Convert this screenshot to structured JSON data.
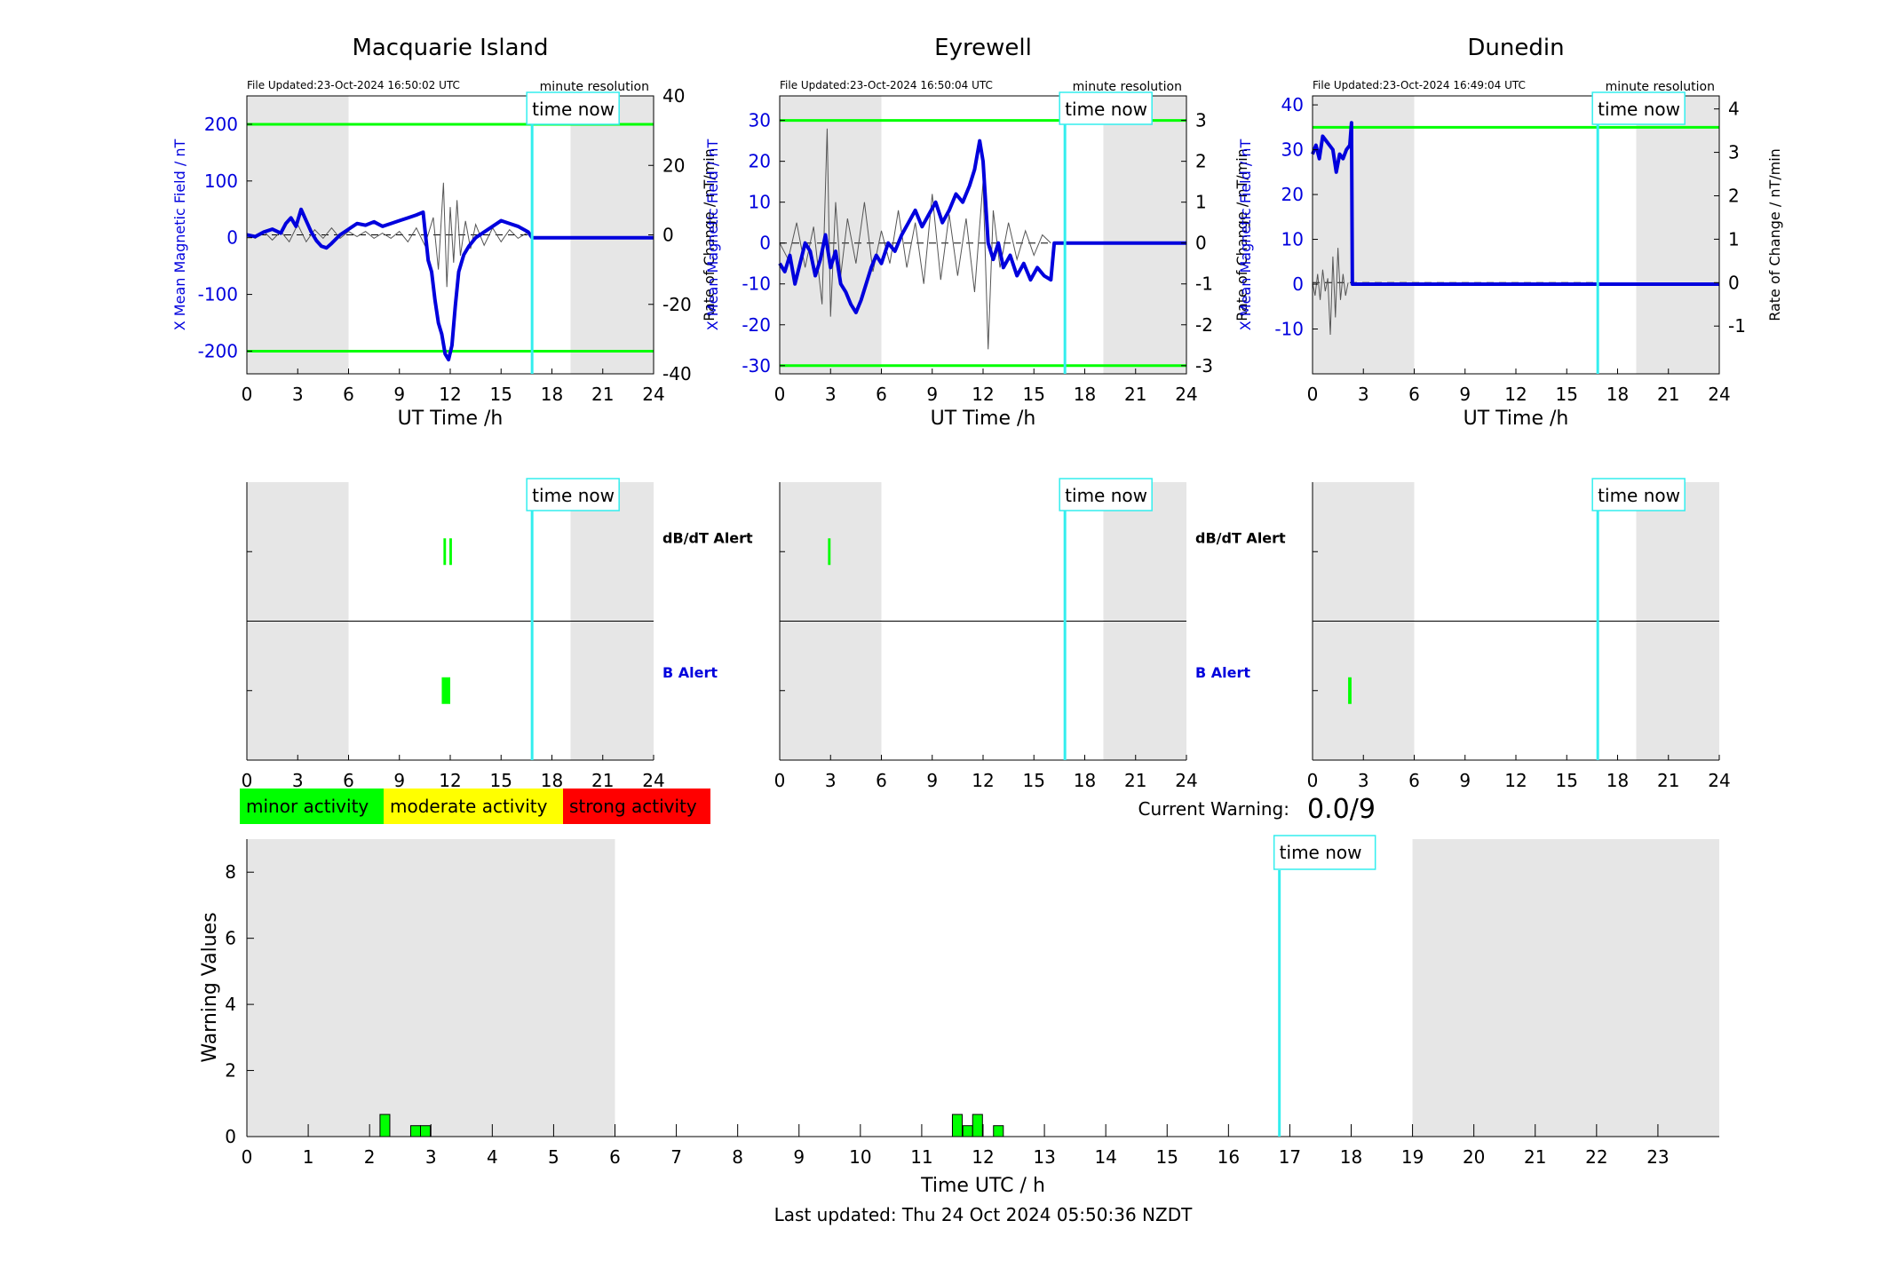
{
  "page": {
    "last_updated": "Last updated: Thu 24 Oct 2024 05:50:36 NZDT",
    "current_warning_label": "Current Warning:",
    "current_warning_value": "0.0/9"
  },
  "labels": {
    "time_now": "time now",
    "minute_resolution": "minute resolution",
    "dbdt_alert": "dB/dT Alert",
    "b_alert": "B Alert"
  },
  "legend": [
    {
      "label": "minor activity",
      "color": "#00ff00"
    },
    {
      "label": "moderate activity",
      "color": "#ffff00"
    },
    {
      "label": "strong activity",
      "color": "#ff0000"
    }
  ],
  "colors": {
    "field_line": "#0000dd",
    "rate_line": "#555555",
    "threshold": "#00ff00",
    "time_now": "#33eeee",
    "night_shade": "#e6e6e6",
    "alert_bar": "#00ff00"
  },
  "chart_data": [
    {
      "type": "line",
      "id": "macquarie",
      "title": "Macquarie Island",
      "file_updated": "File Updated:23-Oct-2024 16:50:02 UTC",
      "xlabel": "UT Time /h",
      "ylabel_left": "X Mean Magnetic Field / nT",
      "ylabel_right": "Rate of Change / nT/min",
      "xlim": [
        0,
        24
      ],
      "xticks": [
        0,
        3,
        6,
        9,
        12,
        15,
        18,
        21,
        24
      ],
      "ylim_left": [
        -240,
        250
      ],
      "yticks_left": [
        -200,
        -100,
        0,
        100,
        200
      ],
      "ylim_right": [
        -40,
        40
      ],
      "yticks_right": [
        -40,
        -20,
        0,
        20,
        40
      ],
      "thresholds": [
        200,
        -200
      ],
      "shaded": [
        [
          0,
          6
        ],
        [
          19.1,
          24
        ]
      ],
      "time_now": 16.83,
      "field": {
        "x": [
          0,
          0.5,
          1,
          1.5,
          2,
          2.3,
          2.6,
          2.9,
          3.2,
          3.5,
          3.8,
          4.1,
          4.4,
          4.7,
          5,
          5.5,
          6,
          6.5,
          7,
          7.5,
          8,
          8.5,
          9,
          9.5,
          10,
          10.4,
          10.7,
          10.9,
          11.1,
          11.3,
          11.5,
          11.7,
          11.9,
          12.1,
          12.3,
          12.5,
          12.8,
          13.1,
          13.5,
          14,
          14.5,
          15,
          15.5,
          16,
          16.6,
          16.83,
          24
        ],
        "y": [
          5,
          2,
          10,
          15,
          8,
          25,
          35,
          20,
          50,
          30,
          10,
          -5,
          -15,
          -18,
          -10,
          5,
          15,
          25,
          22,
          28,
          20,
          25,
          30,
          35,
          40,
          45,
          -40,
          -60,
          -110,
          -150,
          -170,
          -205,
          -215,
          -190,
          -120,
          -60,
          -30,
          -15,
          0,
          10,
          20,
          30,
          25,
          20,
          10,
          0,
          0
        ]
      },
      "rate": {
        "x": [
          0,
          0.5,
          1,
          1.5,
          2,
          2.5,
          3,
          3.5,
          4,
          4.5,
          5,
          5.5,
          6,
          6.5,
          7,
          7.5,
          8,
          8.5,
          9,
          9.5,
          10,
          10.5,
          11,
          11.3,
          11.6,
          11.8,
          12,
          12.2,
          12.4,
          12.6,
          12.9,
          13.2,
          13.5,
          14,
          14.5,
          15,
          15.5,
          16,
          16.5,
          16.83
        ],
        "y": [
          0,
          -1,
          1,
          -1.5,
          1,
          -2,
          3,
          -2,
          1.5,
          -1,
          2,
          -1,
          1,
          -0.5,
          1,
          -1,
          0.5,
          -1,
          1,
          -2,
          2,
          -3,
          5,
          -10,
          15,
          -15,
          8,
          -8,
          10,
          -6,
          4,
          -4,
          3,
          -3,
          2,
          -2,
          1.5,
          -1,
          0.5,
          0
        ]
      }
    },
    {
      "type": "line",
      "id": "eyrewell",
      "title": "Eyrewell",
      "file_updated": "File Updated:23-Oct-2024 16:50:04 UTC",
      "xlabel": "UT Time /h",
      "ylabel_left": "X Mean Magnetic Field / nT",
      "ylabel_right": "Rate of Change / nT/min",
      "xlim": [
        0,
        24
      ],
      "xticks": [
        0,
        3,
        6,
        9,
        12,
        15,
        18,
        21,
        24
      ],
      "ylim_left": [
        -32,
        36
      ],
      "yticks_left": [
        -30,
        -20,
        -10,
        0,
        10,
        20,
        30
      ],
      "ylim_right": [
        -3.2,
        3.6
      ],
      "yticks_right": [
        -3,
        -2,
        -1,
        0,
        1,
        2,
        3
      ],
      "thresholds": [
        30,
        -30
      ],
      "shaded": [
        [
          0,
          6
        ],
        [
          19.1,
          24
        ]
      ],
      "time_now": 16.83,
      "field": {
        "x": [
          0,
          0.3,
          0.6,
          0.9,
          1.2,
          1.5,
          1.8,
          2.1,
          2.4,
          2.7,
          3,
          3.3,
          3.6,
          3.9,
          4.2,
          4.5,
          4.8,
          5.1,
          5.4,
          5.7,
          6,
          6.4,
          6.8,
          7.2,
          7.6,
          8,
          8.4,
          8.8,
          9.2,
          9.6,
          10,
          10.4,
          10.8,
          11.2,
          11.5,
          11.8,
          12,
          12.3,
          12.6,
          12.9,
          13.2,
          13.6,
          14,
          14.4,
          14.8,
          15.2,
          15.6,
          16,
          16.2,
          16.83,
          24
        ],
        "y": [
          -5,
          -7,
          -3,
          -10,
          -5,
          0,
          -2,
          -8,
          -4,
          2,
          -6,
          -2,
          -10,
          -12,
          -15,
          -17,
          -14,
          -10,
          -6,
          -3,
          -5,
          0,
          -2,
          2,
          5,
          8,
          4,
          7,
          10,
          5,
          8,
          12,
          10,
          14,
          18,
          25,
          20,
          0,
          -4,
          0,
          -6,
          -3,
          -8,
          -5,
          -9,
          -6,
          -8,
          -9,
          0,
          0,
          0
        ]
      },
      "rate": {
        "x": [
          0,
          0.5,
          1,
          1.5,
          2,
          2.5,
          2.8,
          3,
          3.3,
          3.6,
          4,
          4.5,
          5,
          5.5,
          6,
          6.5,
          7,
          7.5,
          8,
          8.5,
          9,
          9.5,
          10,
          10.5,
          11,
          11.5,
          12,
          12.3,
          12.6,
          13,
          13.5,
          14,
          14.5,
          15,
          15.5,
          16
        ],
        "y": [
          0,
          -0.4,
          0.5,
          -0.6,
          0.4,
          -1.5,
          2.8,
          -1.8,
          1,
          -0.8,
          0.6,
          -0.5,
          1,
          -0.7,
          0.3,
          -0.5,
          0.8,
          -0.6,
          0.5,
          -1,
          1.2,
          -0.9,
          0.7,
          -0.8,
          0.6,
          -1.2,
          1.5,
          -2.6,
          0.8,
          -0.6,
          0.5,
          -0.4,
          0.3,
          -0.3,
          0.2,
          0
        ]
      }
    },
    {
      "type": "line",
      "id": "dunedin",
      "title": "Dunedin",
      "file_updated": "File Updated:23-Oct-2024 16:49:04 UTC",
      "xlabel": "UT Time /h",
      "ylabel_left": "X Mean Magnetic Field / nT",
      "ylabel_right": "Rate of Change / nT/min",
      "xlim": [
        0,
        24
      ],
      "xticks": [
        0,
        3,
        6,
        9,
        12,
        15,
        18,
        21,
        24
      ],
      "ylim_left": [
        -20,
        42
      ],
      "yticks_left": [
        -10,
        0,
        10,
        20,
        30,
        40
      ],
      "ylim_right": [
        -2.1,
        4.3
      ],
      "yticks_right": [
        -1,
        0,
        1,
        2,
        3,
        4
      ],
      "thresholds": [
        35
      ],
      "shaded": [
        [
          0,
          6
        ],
        [
          19.1,
          24
        ]
      ],
      "time_now": 16.83,
      "field": {
        "x": [
          0,
          0.2,
          0.4,
          0.6,
          0.8,
          1,
          1.2,
          1.4,
          1.6,
          1.8,
          2,
          2.2,
          2.3,
          2.35,
          2.4,
          24
        ],
        "y": [
          29,
          31,
          28,
          33,
          32,
          31,
          30,
          25,
          29,
          28,
          30,
          31,
          36,
          0,
          0,
          0
        ]
      },
      "rate": {
        "x": [
          0,
          0.15,
          0.3,
          0.45,
          0.6,
          0.75,
          0.9,
          1.05,
          1.2,
          1.35,
          1.5,
          1.65,
          1.8,
          1.95,
          2.1
        ],
        "y": [
          0,
          -0.3,
          0.2,
          -0.4,
          0.3,
          -0.2,
          0.1,
          -1.2,
          0.6,
          -0.8,
          0.8,
          -0.4,
          0.2,
          -0.3,
          0
        ]
      }
    },
    {
      "type": "bar",
      "id": "alerts",
      "rows": [
        "dB/dT Alert",
        "B Alert"
      ],
      "xlim": [
        0,
        24
      ],
      "xticks": [
        0,
        3,
        6,
        9,
        12,
        15,
        18,
        21,
        24
      ],
      "panels": [
        {
          "station": "macquarie",
          "dbdt": [
            [
              11.6,
              11.75
            ],
            [
              11.95,
              12.1
            ]
          ],
          "b": [
            [
              11.5,
              12.0
            ]
          ]
        },
        {
          "station": "eyrewell",
          "dbdt": [
            [
              2.85,
              3.0
            ]
          ],
          "b": []
        },
        {
          "station": "dunedin",
          "dbdt": [],
          "b": [
            [
              2.1,
              2.3
            ]
          ]
        }
      ]
    },
    {
      "type": "bar",
      "id": "warning",
      "xlabel": "Time UTC / h",
      "ylabel": "Warning Values",
      "xlim": [
        0,
        24
      ],
      "xticks": [
        0,
        1,
        2,
        3,
        4,
        5,
        6,
        7,
        8,
        9,
        10,
        11,
        12,
        13,
        14,
        15,
        16,
        17,
        18,
        19,
        20,
        21,
        22,
        23
      ],
      "ylim": [
        0,
        9
      ],
      "yticks": [
        0,
        2,
        4,
        6,
        8
      ],
      "shaded": [
        [
          0,
          6
        ],
        [
          19,
          24
        ]
      ],
      "time_now": 16.83,
      "bars": [
        {
          "x": 2.17,
          "w": 0.16,
          "v": 0.67
        },
        {
          "x": 2.67,
          "w": 0.16,
          "v": 0.33
        },
        {
          "x": 2.83,
          "w": 0.16,
          "v": 0.33
        },
        {
          "x": 11.5,
          "w": 0.16,
          "v": 0.67
        },
        {
          "x": 11.67,
          "w": 0.16,
          "v": 0.33
        },
        {
          "x": 11.83,
          "w": 0.16,
          "v": 0.67
        },
        {
          "x": 12.17,
          "w": 0.16,
          "v": 0.33
        }
      ]
    }
  ]
}
